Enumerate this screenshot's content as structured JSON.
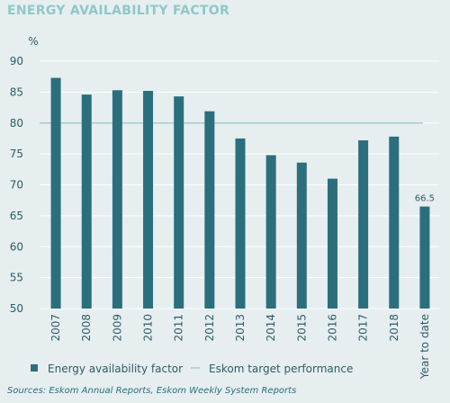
{
  "title": "ENERGY AVAILABILITY FACTOR",
  "source": "Sources: Eskom Annual Reports, Eskom Weekly System Reports",
  "colors": {
    "bar": "#2b6f7d",
    "target_line": "#9fcfcc",
    "grid": "#ffffff",
    "title": "#8fc8c6",
    "text": "#2e5c66"
  },
  "chart_data": {
    "type": "bar",
    "unit_label": "%",
    "categories": [
      "2007",
      "2008",
      "2009",
      "2010",
      "2011",
      "2012",
      "2013",
      "2014",
      "2015",
      "2016",
      "2017",
      "2018",
      "Year to date"
    ],
    "series": [
      {
        "name": "Energy availability factor",
        "values": [
          87.3,
          84.6,
          85.3,
          85.2,
          84.3,
          81.9,
          77.5,
          74.8,
          73.6,
          71.0,
          77.2,
          77.8,
          66.5
        ]
      }
    ],
    "target": {
      "name": "Eskom target performance",
      "value": 80
    },
    "data_labels": [
      {
        "category": "Year to date",
        "text": "66.5"
      }
    ],
    "ylim": [
      50,
      90
    ],
    "yticks": [
      50,
      55,
      60,
      65,
      70,
      75,
      80,
      85,
      90
    ],
    "grid": true,
    "legend_position": "bottom"
  },
  "legend": {
    "bar_label": "Energy availability factor",
    "line_label": "Eskom target performance"
  }
}
